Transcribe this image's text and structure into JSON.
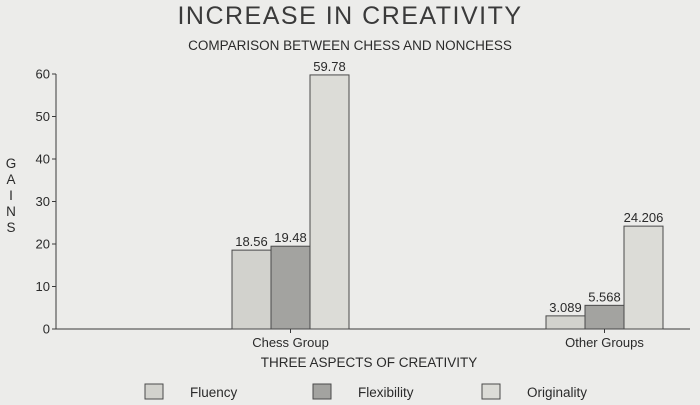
{
  "chart_data": {
    "type": "bar",
    "title": "INCREASE IN CREATIVITY",
    "subtitle": "COMPARISON BETWEEN CHESS AND NONCHESS",
    "xlabel": "THREE ASPECTS OF CREATIVITY",
    "ylabel": "GAINS",
    "categories": [
      "Chess Group",
      "Other Groups"
    ],
    "series": [
      {
        "name": "Fluency",
        "values": [
          18.56,
          3.089
        ],
        "labels": [
          "18.56",
          "3.089"
        ],
        "color": "#d2d2cd"
      },
      {
        "name": "Flexibility",
        "values": [
          19.48,
          5.568
        ],
        "labels": [
          "19.48",
          "5.568"
        ],
        "color": "#a3a3a0"
      },
      {
        "name": "Originality",
        "values": [
          59.78,
          24.206
        ],
        "labels": [
          "59.78",
          "24.206"
        ],
        "color": "#dcdcd7"
      }
    ],
    "ylim": [
      0,
      60
    ],
    "yticks": [
      0,
      10,
      20,
      30,
      40,
      50,
      60
    ],
    "grid": false,
    "legend_position": "bottom"
  }
}
